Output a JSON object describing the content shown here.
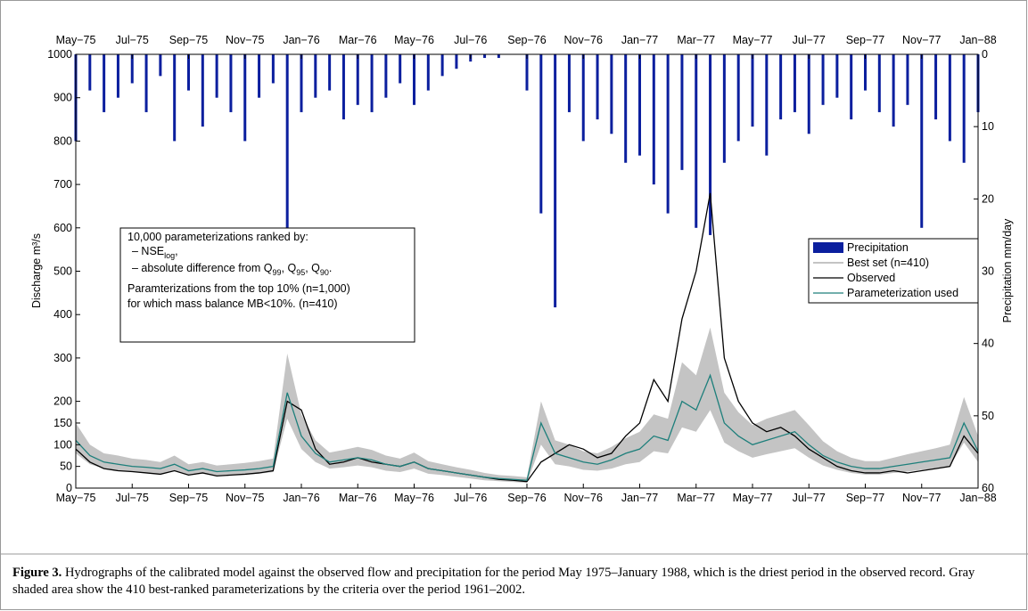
{
  "chart_data": {
    "type": "hydrograph",
    "y_label": "Discharge m³/s",
    "y2_label": "Precipitation mm/day",
    "xlim": [
      0,
      32
    ],
    "xticks": [
      {
        "value": 0,
        "label": "May−75"
      },
      {
        "value": 2,
        "label": "Jul−75"
      },
      {
        "value": 4,
        "label": "Sep−75"
      },
      {
        "value": 6,
        "label": "Nov−75"
      },
      {
        "value": 8,
        "label": "Jan−76"
      },
      {
        "value": 10,
        "label": "Mar−76"
      },
      {
        "value": 12,
        "label": "May−76"
      },
      {
        "value": 14,
        "label": "Jul−76"
      },
      {
        "value": 16,
        "label": "Sep−76"
      },
      {
        "value": 18,
        "label": "Nov−76"
      },
      {
        "value": 20,
        "label": "Jan−77"
      },
      {
        "value": 22,
        "label": "Mar−77"
      },
      {
        "value": 24,
        "label": "May−77"
      },
      {
        "value": 26,
        "label": "Jul−77"
      },
      {
        "value": 28,
        "label": "Sep−77"
      },
      {
        "value": 30,
        "label": "Nov−77"
      },
      {
        "value": 32,
        "label": "Jan−88"
      }
    ],
    "ylim": [
      0,
      1000
    ],
    "yticks": [
      0,
      50,
      100,
      150,
      200,
      300,
      400,
      500,
      600,
      700,
      800,
      900,
      1000
    ],
    "y2lim": [
      60,
      0
    ],
    "y2ticks": [
      0,
      10,
      20,
      30,
      40,
      50,
      60
    ],
    "x": [
      0,
      0.5,
      1,
      1.5,
      2,
      2.5,
      3,
      3.5,
      4,
      4.5,
      5,
      5.5,
      6,
      6.5,
      7,
      7.5,
      8,
      8.5,
      9,
      9.5,
      10,
      10.5,
      11,
      11.5,
      12,
      12.5,
      13,
      13.5,
      14,
      14.5,
      15,
      15.5,
      16,
      16.5,
      17,
      17.5,
      18,
      18.5,
      19,
      19.5,
      20,
      20.5,
      21,
      21.5,
      22,
      22.5,
      23,
      23.5,
      24,
      24.5,
      25,
      25.5,
      26,
      26.5,
      27,
      27.5,
      28,
      28.5,
      29,
      29.5,
      30,
      30.5,
      31,
      31.5,
      32
    ],
    "series": [
      {
        "name": "Precipitation",
        "color": "#0b1f9e",
        "axis": "y2",
        "values": [
          12,
          5,
          8,
          6,
          4,
          8,
          3,
          12,
          5,
          10,
          6,
          8,
          12,
          6,
          4,
          24,
          8,
          6,
          5,
          9,
          7,
          8,
          6,
          4,
          7,
          5,
          3,
          2,
          1,
          0.5,
          0.5,
          0,
          5,
          22,
          35,
          8,
          12,
          9,
          11,
          15,
          14,
          18,
          22,
          16,
          24,
          25,
          15,
          12,
          10,
          14,
          9,
          8,
          11,
          7,
          6,
          9,
          5,
          8,
          10,
          7,
          24,
          9,
          12,
          15,
          8
        ]
      },
      {
        "name": "Best set (n=410)",
        "color": "#c4c4c4",
        "lower": [
          80,
          55,
          45,
          40,
          38,
          35,
          33,
          40,
          30,
          33,
          28,
          30,
          31,
          33,
          37,
          160,
          90,
          60,
          45,
          48,
          52,
          48,
          40,
          37,
          45,
          33,
          30,
          26,
          22,
          18,
          16,
          14,
          12,
          100,
          55,
          50,
          42,
          40,
          45,
          55,
          60,
          85,
          80,
          140,
          130,
          180,
          105,
          85,
          70,
          78,
          85,
          92,
          70,
          52,
          42,
          35,
          31,
          31,
          35,
          38,
          42,
          45,
          50,
          105,
          60
        ],
        "upper": [
          150,
          100,
          80,
          75,
          68,
          65,
          60,
          75,
          55,
          60,
          52,
          55,
          58,
          62,
          68,
          310,
          170,
          110,
          82,
          88,
          95,
          88,
          75,
          68,
          82,
          62,
          55,
          48,
          42,
          35,
          30,
          28,
          25,
          200,
          110,
          100,
          85,
          80,
          95,
          115,
          130,
          170,
          160,
          290,
          260,
          370,
          220,
          175,
          145,
          160,
          170,
          180,
          145,
          108,
          85,
          70,
          62,
          62,
          70,
          78,
          85,
          92,
          100,
          210,
          120
        ]
      },
      {
        "name": "Observed",
        "color": "#000000",
        "values": [
          90,
          60,
          45,
          40,
          38,
          35,
          32,
          40,
          30,
          35,
          28,
          30,
          32,
          35,
          40,
          200,
          180,
          90,
          55,
          60,
          70,
          60,
          55,
          50,
          60,
          45,
          40,
          35,
          30,
          25,
          20,
          18,
          15,
          60,
          80,
          100,
          90,
          70,
          80,
          120,
          150,
          250,
          200,
          390,
          500,
          680,
          300,
          200,
          150,
          130,
          140,
          120,
          90,
          70,
          50,
          40,
          35,
          35,
          40,
          35,
          40,
          45,
          50,
          120,
          80
        ]
      },
      {
        "name": "Parameterization used",
        "color": "#1d7f7b",
        "values": [
          110,
          75,
          60,
          55,
          50,
          48,
          45,
          55,
          40,
          45,
          38,
          40,
          42,
          45,
          50,
          220,
          120,
          80,
          60,
          65,
          70,
          65,
          55,
          50,
          60,
          45,
          40,
          35,
          30,
          25,
          22,
          20,
          18,
          150,
          80,
          70,
          60,
          55,
          65,
          80,
          90,
          120,
          110,
          200,
          180,
          260,
          150,
          120,
          100,
          110,
          120,
          130,
          100,
          75,
          60,
          50,
          45,
          45,
          50,
          55,
          60,
          65,
          70,
          150,
          85
        ]
      }
    ],
    "annotation": {
      "heading": "10,000 parameterizations ranked by:",
      "items": [
        [
          "– NSE",
          "log",
          ","
        ],
        [
          "– absolute difference from Q",
          "99",
          ", Q",
          "95",
          ", Q",
          "90",
          "."
        ]
      ],
      "notes": [
        "Paramterizations from the top 10% (n=1,000)",
        "for which mass balance MB<10%. (n=410)"
      ]
    },
    "caption_label": "Figure 3.",
    "caption": "Hydrographs of the calibrated model against the observed flow and precipitation for the period May 1975–January 1988, which is the driest period in the observed record. Gray shaded area show the 410 best-ranked parameterizations by the criteria over the period 1961–2002."
  }
}
